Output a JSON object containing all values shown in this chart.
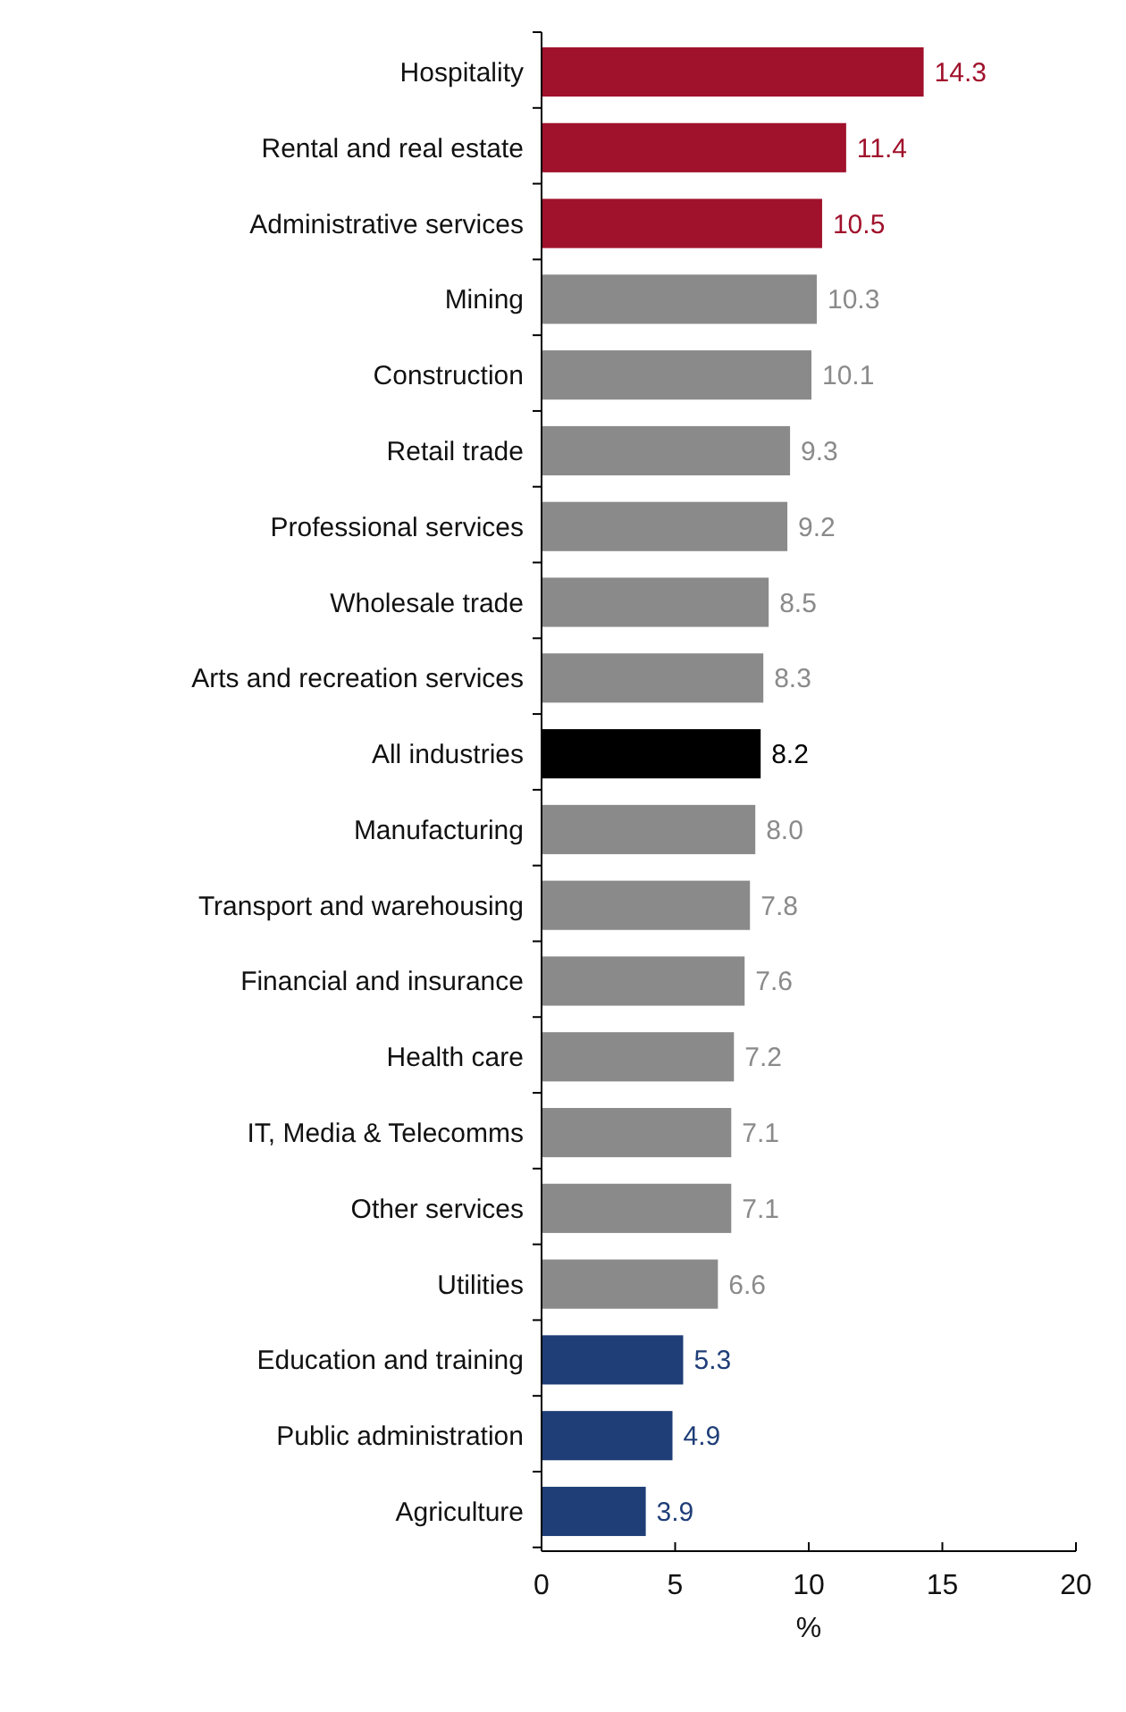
{
  "chart_data": {
    "type": "bar",
    "orientation": "horizontal",
    "xlabel": "%",
    "categories": [
      "Hospitality",
      "Rental and real estate",
      "Administrative services",
      "Mining",
      "Construction",
      "Retail trade",
      "Professional services",
      "Wholesale trade",
      "Arts and recreation services",
      "All industries",
      "Manufacturing",
      "Transport and warehousing",
      "Financial and insurance",
      "Health care",
      "IT, Media & Telecomms",
      "Other services",
      "Utilities",
      "Education and training",
      "Public administration",
      "Agriculture"
    ],
    "values": [
      14.3,
      11.4,
      10.5,
      10.3,
      10.1,
      9.3,
      9.2,
      8.5,
      8.3,
      8.2,
      8.0,
      7.8,
      7.6,
      7.2,
      7.1,
      7.1,
      6.6,
      5.3,
      4.9,
      3.9
    ],
    "value_labels": [
      "14.3",
      "11.4",
      "10.5",
      "10.3",
      "10.1",
      "9.3",
      "9.2",
      "8.5",
      "8.3",
      "8.2",
      "8.0",
      "7.8",
      "7.6",
      "7.2",
      "7.1",
      "7.1",
      "6.6",
      "5.3",
      "4.9",
      "3.9"
    ],
    "colors": [
      "#a0112b",
      "#a0112b",
      "#a0112b",
      "#8a8a8a",
      "#8a8a8a",
      "#8a8a8a",
      "#8a8a8a",
      "#8a8a8a",
      "#8a8a8a",
      "#000000",
      "#8a8a8a",
      "#8a8a8a",
      "#8a8a8a",
      "#8a8a8a",
      "#8a8a8a",
      "#8a8a8a",
      "#8a8a8a",
      "#1f3e78",
      "#1f3e78",
      "#1f3e78"
    ],
    "xlim": [
      0,
      20
    ],
    "xticks": [
      0,
      5,
      10,
      15,
      20
    ]
  }
}
